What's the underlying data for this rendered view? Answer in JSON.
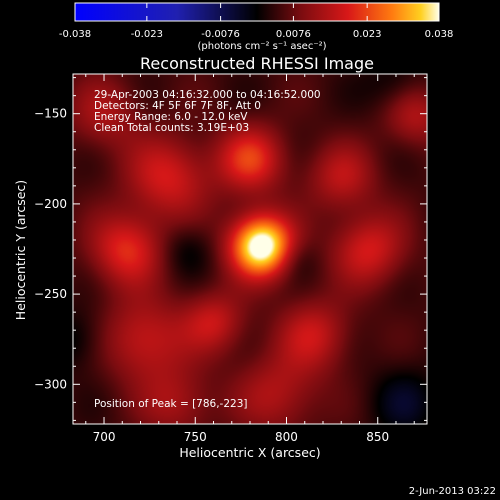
{
  "chart_data": {
    "type": "heatmap",
    "title": "Reconstructed RHESSI Image",
    "xlabel": "Heliocentric X (arcsec)",
    "ylabel": "Heliocentric Y (arcsec)",
    "xlim": [
      683,
      877
    ],
    "ylim": [
      -322,
      -128
    ],
    "x_ticks": [
      700,
      750,
      800,
      850
    ],
    "y_ticks": [
      -150,
      -200,
      -250,
      -300
    ],
    "colorbar": {
      "colormap": "RHESSI/IDL 'hot-fire' (blue-black-red-yellow-white)",
      "range": [
        -0.038,
        0.038
      ],
      "tick_labels": [
        "-0.038",
        "-0.023",
        "-0.0076",
        "0.0076",
        "0.023",
        "0.038"
      ],
      "ticks": [
        -0.038,
        -0.023,
        -0.0076,
        0.0076,
        0.023,
        0.038
      ],
      "unit_label": "(photons cm⁻² s⁻¹ asec⁻²)"
    },
    "annotations": {
      "time_range": "29-Apr-2003 04:16:32.000 to 04:16:52.000",
      "detectors": "Detectors: 4F 5F 6F 7F 8F, Att 0",
      "energy": "Energy Range: 6.0 - 12.0 keV",
      "clean": "Clean    Total counts: 3.19E+03",
      "peak": "Position of Peak = [786,-223]"
    },
    "peak": {
      "x": 786,
      "y": -223
    },
    "sources": [
      {
        "x": 786,
        "y": -223,
        "amp": 0.038,
        "sigma": 12
      },
      {
        "x": 780,
        "y": -175,
        "amp": 0.017,
        "sigma": 13
      },
      {
        "x": 735,
        "y": -185,
        "amp": 0.014,
        "sigma": 16
      },
      {
        "x": 712,
        "y": -225,
        "amp": 0.016,
        "sigma": 14
      },
      {
        "x": 722,
        "y": -275,
        "amp": 0.013,
        "sigma": 16
      },
      {
        "x": 760,
        "y": -265,
        "amp": 0.012,
        "sigma": 12
      },
      {
        "x": 815,
        "y": -272,
        "amp": 0.012,
        "sigma": 14
      },
      {
        "x": 845,
        "y": -225,
        "amp": 0.014,
        "sigma": 14
      },
      {
        "x": 830,
        "y": -185,
        "amp": 0.011,
        "sigma": 13
      },
      {
        "x": 870,
        "y": -150,
        "amp": 0.011,
        "sigma": 12
      },
      {
        "x": 700,
        "y": -150,
        "amp": 0.009,
        "sigma": 14
      },
      {
        "x": 795,
        "y": -305,
        "amp": 0.01,
        "sigma": 16
      },
      {
        "x": 740,
        "y": -310,
        "amp": 0.009,
        "sigma": 14
      },
      {
        "x": 865,
        "y": -310,
        "amp": -0.007,
        "sigma": 14
      },
      {
        "x": 685,
        "y": -275,
        "amp": -0.006,
        "sigma": 12
      },
      {
        "x": 745,
        "y": -225,
        "amp": -0.005,
        "sigma": 10
      },
      {
        "x": 805,
        "y": -230,
        "amp": -0.004,
        "sigma": 8
      },
      {
        "x": 860,
        "y": -135,
        "amp": -0.006,
        "sigma": 12
      }
    ]
  },
  "date_stamp": "2-Jun-2013 03:22"
}
